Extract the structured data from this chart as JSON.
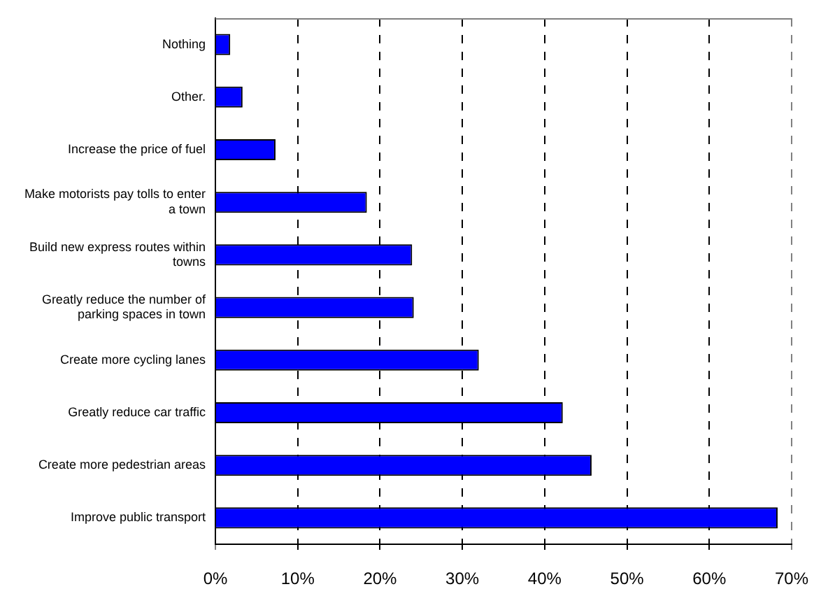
{
  "chart_data": {
    "type": "bar",
    "orientation": "horizontal",
    "categories": [
      "Nothing",
      "Other.",
      "Increase the price of fuel",
      "Make motorists pay tolls to enter a town",
      "Build new express routes within towns",
      "Greatly reduce the number of parking spaces in town",
      "Create more cycling lanes",
      "Greatly reduce car traffic",
      "Create more pedestrian areas",
      "Improve public transport"
    ],
    "values": [
      1.8,
      3.3,
      7.3,
      18.4,
      23.9,
      24.1,
      32.0,
      42.2,
      45.7,
      68.3
    ],
    "color": "#0000ff",
    "xlim": [
      0,
      70
    ],
    "xticks": [
      {
        "value": 0,
        "label": "0%"
      },
      {
        "value": 10,
        "label": "10%"
      },
      {
        "value": 20,
        "label": "20%"
      },
      {
        "value": 30,
        "label": "30%"
      },
      {
        "value": 40,
        "label": "40%"
      },
      {
        "value": 50,
        "label": "50%"
      },
      {
        "value": 60,
        "label": "60%"
      },
      {
        "value": 70,
        "label": "70%"
      }
    ],
    "grid": "x",
    "legend": false
  }
}
